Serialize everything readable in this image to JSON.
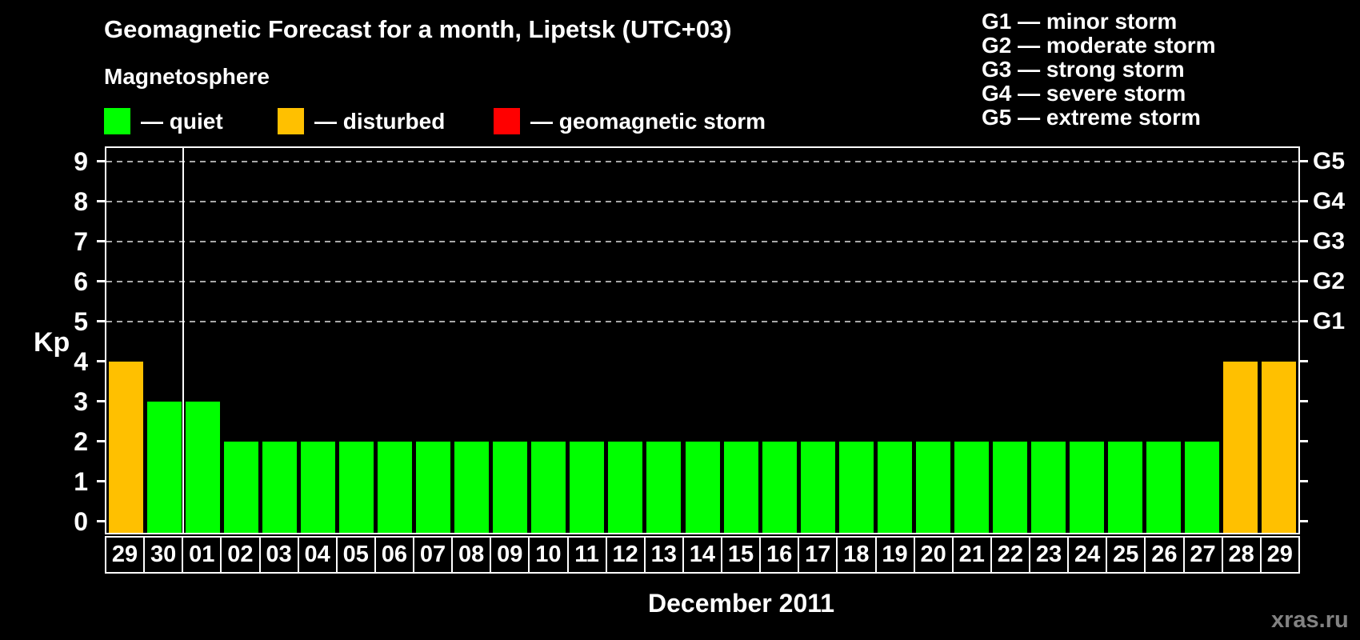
{
  "header": {
    "title": "Geomagnetic Forecast for a month, Lipetsk (UTC+03)",
    "subtitle": "Magnetosphere"
  },
  "legend": {
    "items": [
      {
        "key": "quiet",
        "label": "— quiet",
        "color": "#00ff00"
      },
      {
        "key": "disturbed",
        "label": "— disturbed",
        "color": "#ffc000"
      },
      {
        "key": "storm",
        "label": "— geomagnetic storm",
        "color": "#ff0000"
      }
    ]
  },
  "storm_scale_legend": {
    "items": [
      "G1 — minor storm",
      "G2 — moderate storm",
      "G3 — strong storm",
      "G4 — severe storm",
      "G5 — extreme storm"
    ]
  },
  "chart_data": {
    "type": "bar",
    "title": "Geomagnetic Forecast for a month, Lipetsk (UTC+03)",
    "xlabel": "December 2011",
    "ylabel": "Kp",
    "ylim": [
      0,
      9
    ],
    "y_ticks": [
      0,
      1,
      2,
      3,
      4,
      5,
      6,
      7,
      8,
      9
    ],
    "grid_levels": [
      5,
      6,
      7,
      8,
      9
    ],
    "grid_on": true,
    "right_axis": [
      {
        "kp": 5,
        "label": "G1"
      },
      {
        "kp": 6,
        "label": "G2"
      },
      {
        "kp": 7,
        "label": "G3"
      },
      {
        "kp": 8,
        "label": "G4"
      },
      {
        "kp": 9,
        "label": "G5"
      }
    ],
    "categories": [
      "29",
      "30",
      "01",
      "02",
      "03",
      "04",
      "05",
      "06",
      "07",
      "08",
      "09",
      "10",
      "11",
      "12",
      "13",
      "14",
      "15",
      "16",
      "17",
      "18",
      "19",
      "20",
      "21",
      "22",
      "23",
      "24",
      "25",
      "26",
      "27",
      "28",
      "29"
    ],
    "values": [
      4,
      3,
      3,
      2,
      2,
      2,
      2,
      2,
      2,
      2,
      2,
      2,
      2,
      2,
      2,
      2,
      2,
      2,
      2,
      2,
      2,
      2,
      2,
      2,
      2,
      2,
      2,
      2,
      2,
      4,
      4
    ],
    "statuses": [
      "disturbed",
      "quiet",
      "quiet",
      "quiet",
      "quiet",
      "quiet",
      "quiet",
      "quiet",
      "quiet",
      "quiet",
      "quiet",
      "quiet",
      "quiet",
      "quiet",
      "quiet",
      "quiet",
      "quiet",
      "quiet",
      "quiet",
      "quiet",
      "quiet",
      "quiet",
      "quiet",
      "quiet",
      "quiet",
      "quiet",
      "quiet",
      "quiet",
      "quiet",
      "disturbed",
      "disturbed"
    ],
    "separator_after_index": 1,
    "colors": {
      "quiet": "#00ff00",
      "disturbed": "#ffc000",
      "storm": "#ff0000"
    }
  },
  "footer": {
    "month_label": "December 2011",
    "watermark": "xras.ru"
  }
}
